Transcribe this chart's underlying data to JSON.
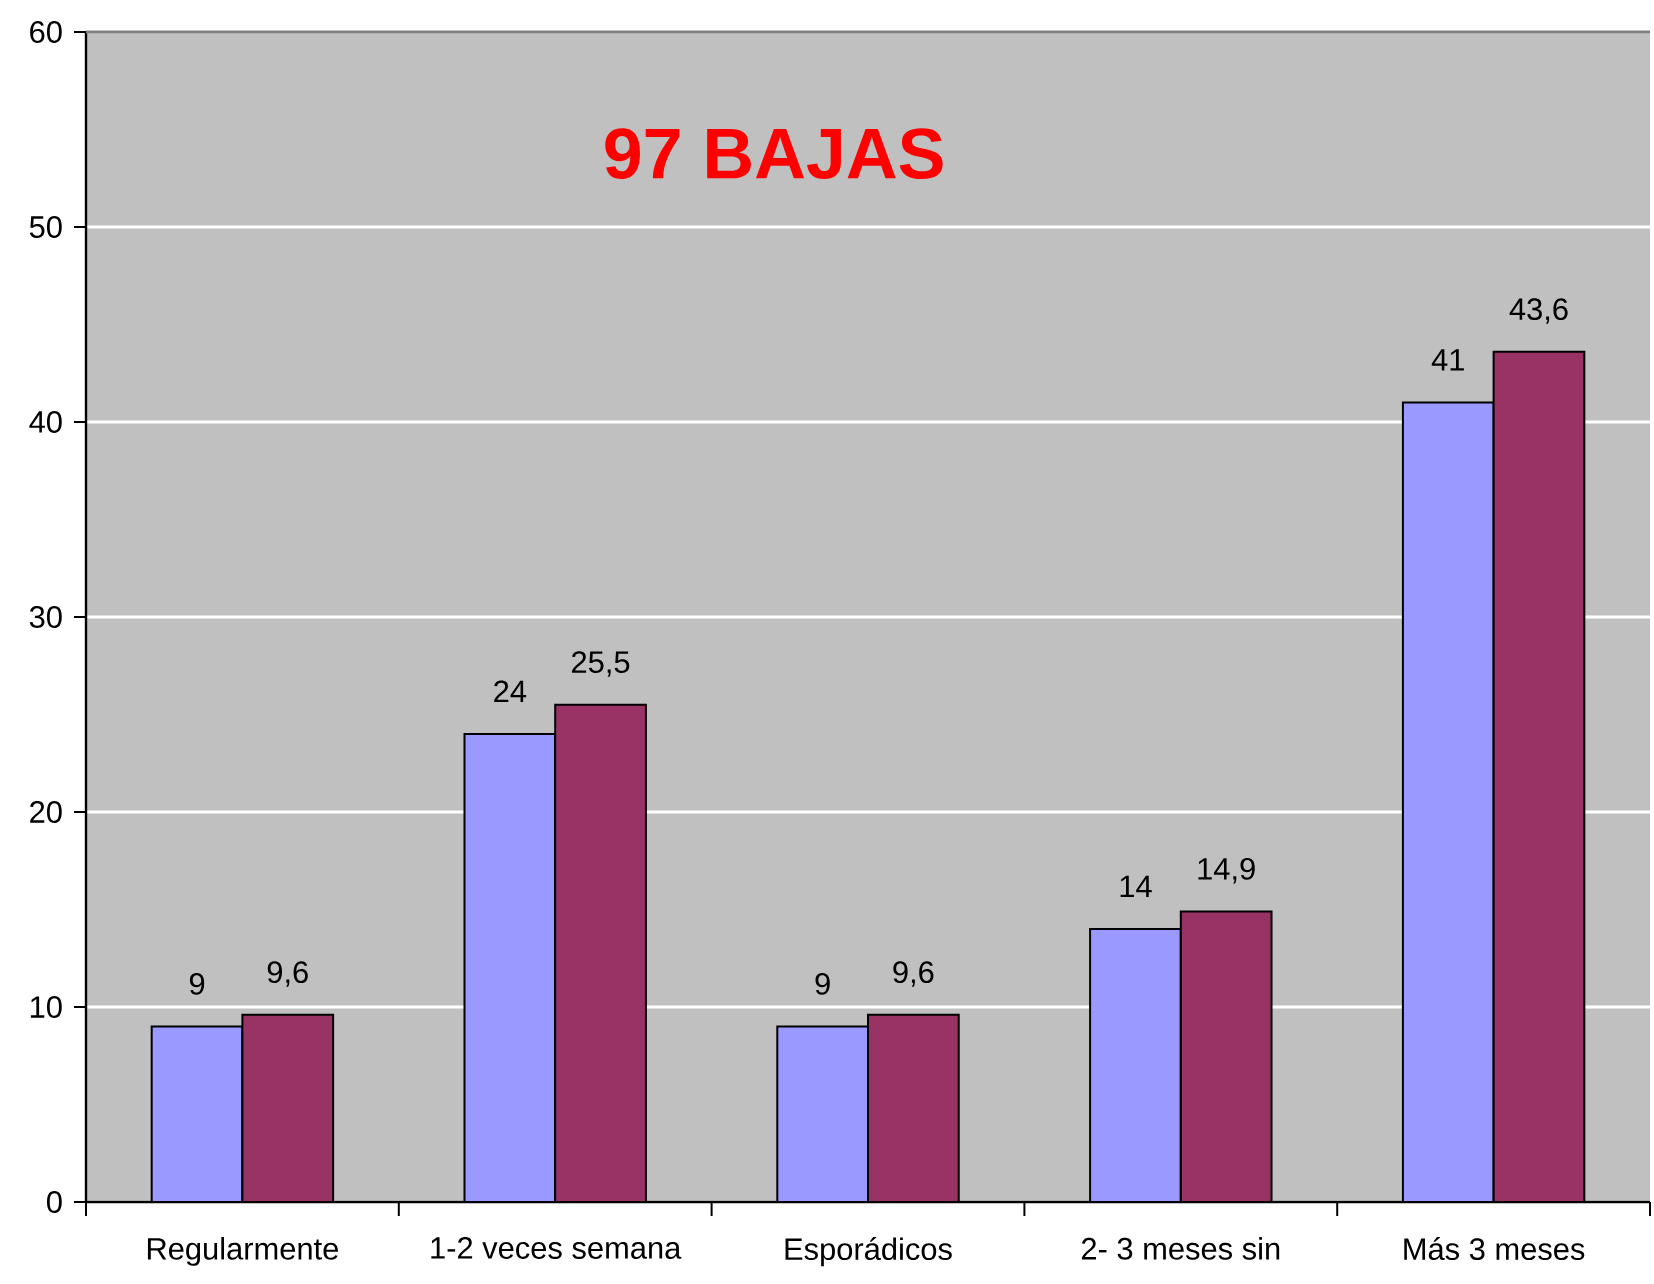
{
  "chart_data": {
    "type": "bar",
    "title": "97 BAJAS",
    "categories": [
      "Regularmente",
      "1-2 veces semana",
      "Esporádicos",
      "2- 3 meses sin",
      "Más 3 meses"
    ],
    "series": [
      {
        "color": "#9999ff",
        "values": [
          9,
          24,
          9,
          14,
          41
        ],
        "value_labels": [
          "9",
          "24",
          "9",
          "14",
          "41"
        ]
      },
      {
        "color": "#993366",
        "values": [
          9.6,
          25.5,
          9.6,
          14.9,
          43.6
        ],
        "value_labels": [
          "9,6",
          "25,5",
          "9,6",
          "14,9",
          "43,6"
        ]
      }
    ],
    "ylim": [
      0,
      60
    ],
    "yticks": [
      0,
      10,
      20,
      30,
      40,
      50,
      60
    ],
    "grid": "y"
  }
}
